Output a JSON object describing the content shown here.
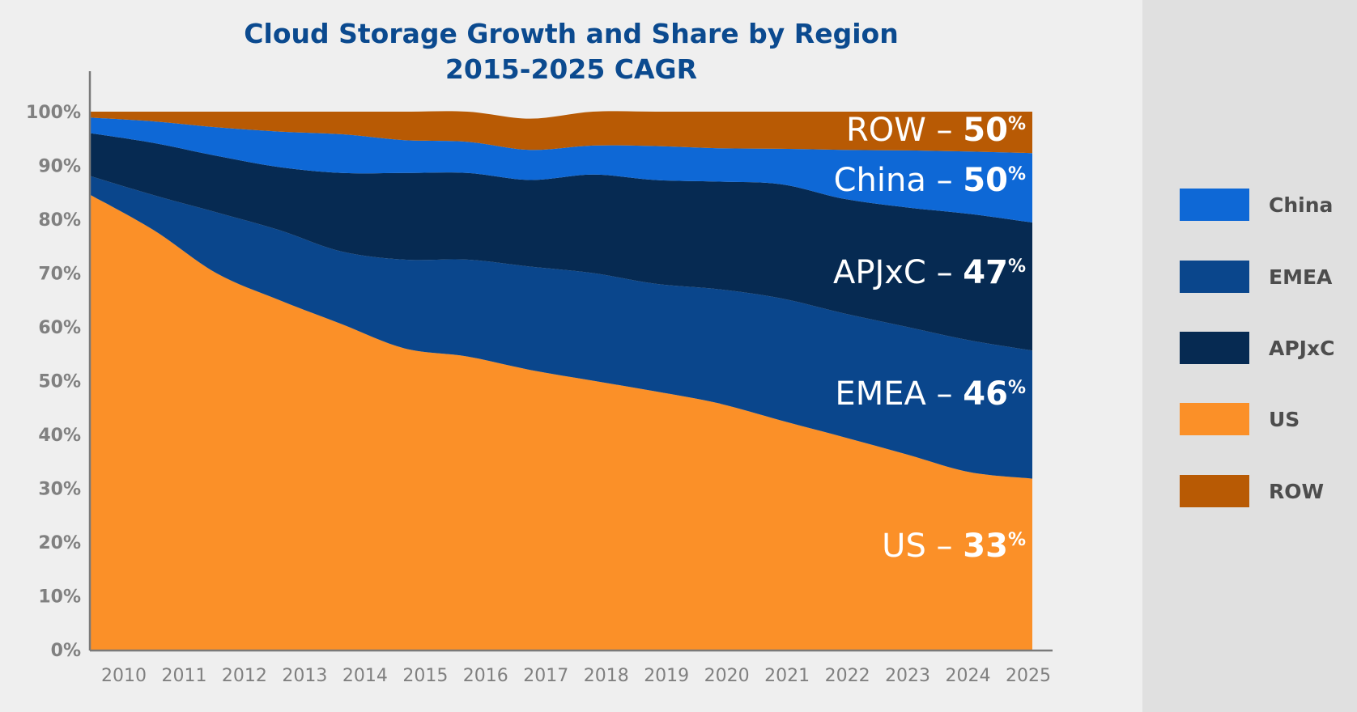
{
  "chart_data": {
    "type": "area",
    "stacked": true,
    "normalized": true,
    "title": "Cloud Storage Growth and Share by Region",
    "subtitle": "2015-2025 CAGR",
    "xlabel": "",
    "ylabel": "",
    "categories": [
      "2010",
      "2011",
      "2012",
      "2013",
      "2014",
      "2015",
      "2016",
      "2017",
      "2018",
      "2019",
      "2020",
      "2021",
      "2022",
      "2023",
      "2024",
      "2025"
    ],
    "yticks": [
      "0%",
      "10%",
      "20%",
      "30%",
      "40%",
      "50%",
      "60%",
      "70%",
      "80%",
      "90%",
      "100%"
    ],
    "ylim": [
      0,
      100
    ],
    "grid": false,
    "legend_position": "right",
    "series": [
      {
        "name": "US",
        "color": "#fb9028",
        "values": [
          84.5,
          78,
          70,
          65,
          60.5,
          56,
          54.5,
          52,
          50,
          48,
          45.8,
          42.6,
          39.5,
          36.3,
          33,
          31.8
        ]
      },
      {
        "name": "EMEA",
        "color": "#0a468c",
        "values": [
          3.5,
          6.5,
          11.3,
          13,
          13.5,
          16.5,
          18,
          19.2,
          20,
          20,
          21.2,
          22.7,
          23,
          23.7,
          24.5,
          23.8
        ]
      },
      {
        "name": "APJxC",
        "color": "#062a52",
        "values": [
          8,
          9.7,
          10.5,
          11.7,
          14.6,
          16.1,
          16.1,
          16.1,
          18.3,
          19.3,
          20,
          21.2,
          21.3,
          22.2,
          23.5,
          23.8
        ]
      },
      {
        "name": "China",
        "color": "#0e68d6",
        "values": [
          2.9,
          4,
          5.3,
          6.6,
          7.2,
          6.1,
          5.8,
          5.6,
          5.4,
          6.3,
          6.2,
          6.6,
          9.1,
          10.6,
          11.6,
          12.9
        ]
      },
      {
        "name": "ROW",
        "color": "#b85a04",
        "values": [
          1.1,
          1.8,
          2.9,
          3.7,
          4.2,
          5.3,
          5.6,
          5.8,
          6.3,
          6.4,
          6.8,
          6.9,
          7.1,
          7.2,
          7.4,
          7.7
        ]
      }
    ],
    "annotations": [
      {
        "series": "ROW",
        "label": "ROW – ",
        "value": "50",
        "unit": "%"
      },
      {
        "series": "China",
        "label": "China – ",
        "value": "50",
        "unit": "%"
      },
      {
        "series": "APJxC",
        "label": "APJxC – ",
        "value": "47",
        "unit": "%"
      },
      {
        "series": "EMEA",
        "label": "EMEA – ",
        "value": "46",
        "unit": "%"
      },
      {
        "series": "US",
        "label": "US – ",
        "value": "33",
        "unit": "%"
      }
    ],
    "legend": [
      {
        "label": "China",
        "color": "#0e68d6"
      },
      {
        "label": "EMEA",
        "color": "#0a468c"
      },
      {
        "label": "APJxC",
        "color": "#062a52"
      },
      {
        "label": "US",
        "color": "#fb9028"
      },
      {
        "label": "ROW",
        "color": "#b85a04"
      }
    ]
  }
}
